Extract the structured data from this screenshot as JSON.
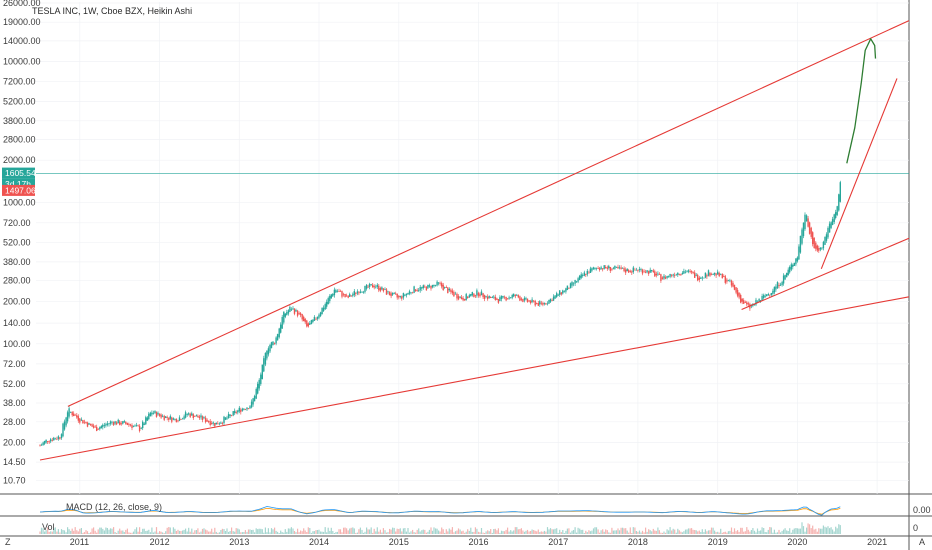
{
  "header": {
    "title": "TESLA INC, 1W, Cboe BZX, Heikin Ashi"
  },
  "price_axis": {
    "labels": [
      "26000.00",
      "19000.00",
      "14000.00",
      "10000.00",
      "7200.00",
      "5200.00",
      "3800.00",
      "2800.00",
      "2000.00",
      "1000.00",
      "720.00",
      "520.00",
      "380.00",
      "280.00",
      "200.00",
      "140.00",
      "100.00",
      "72.00",
      "52.00",
      "38.00",
      "28.00",
      "20.00",
      "14.50",
      "10.70"
    ]
  },
  "time_axis": {
    "labels": [
      "2011",
      "2012",
      "2013",
      "2014",
      "2015",
      "2016",
      "2017",
      "2018",
      "2019",
      "2020",
      "2021"
    ]
  },
  "badges": {
    "last_price": "1605.54",
    "countdown": "3d 17h",
    "prev_close": "1497.06"
  },
  "colors": {
    "up": "#26a69a",
    "down": "#ef5350",
    "trendline": "#e53935",
    "annotation": "#2e7d32",
    "macd": "#2196f3",
    "signal": "#ff9800",
    "price_line": "#26a69a"
  },
  "indicators": {
    "macd_label": "MACD (12, 26, close, 9)",
    "macd_value": "0.00",
    "vol_label": "Vol",
    "vol_value": "0"
  },
  "corner_labels": {
    "left": "Z",
    "right": "A"
  },
  "chart_data": {
    "type": "line",
    "title": "TESLA INC, 1W, Cboe BZX, Heikin Ashi",
    "scale": "log",
    "xlim": [
      2010.45,
      2021.4
    ],
    "ylim": [
      9.5,
      26000
    ],
    "series": [
      {
        "x": [
          2010.5,
          2010.6,
          2010.75,
          2010.85,
          2011.0,
          2011.2,
          2011.4,
          2011.6,
          2011.75,
          2011.9,
          2012.0,
          2012.2,
          2012.35,
          2012.5,
          2012.7,
          2012.85,
          2013.0,
          2013.15,
          2013.25,
          2013.35,
          2013.45,
          2013.55,
          2013.65,
          2013.75,
          2013.85,
          2013.95,
          2014.1,
          2014.2,
          2014.35,
          2014.5,
          2014.7,
          2014.85,
          2015.0,
          2015.2,
          2015.35,
          2015.5,
          2015.65,
          2015.8,
          2016.0,
          2016.1,
          2016.25,
          2016.45,
          2016.6,
          2016.8,
          2016.95,
          2017.15,
          2017.35,
          2017.5,
          2017.7,
          2017.85,
          2018.0,
          2018.15,
          2018.3,
          2018.45,
          2018.6,
          2018.75,
          2018.9,
          2019.0,
          2019.15,
          2019.3,
          2019.4,
          2019.5,
          2019.65,
          2019.8,
          2019.9,
          2020.0,
          2020.1,
          2020.15,
          2020.22,
          2020.3,
          2020.4,
          2020.5,
          2020.55
        ],
        "y": [
          19,
          21,
          22,
          34,
          29,
          25,
          28,
          27,
          25,
          33,
          31,
          29,
          32,
          30,
          27,
          30,
          34,
          37,
          55,
          95,
          105,
          160,
          180,
          160,
          130,
          150,
          200,
          245,
          210,
          240,
          260,
          230,
          210,
          245,
          250,
          265,
          230,
          210,
          230,
          215,
          205,
          220,
          200,
          190,
          215,
          255,
          320,
          350,
          340,
          330,
          335,
          325,
          290,
          315,
          330,
          295,
          320,
          310,
          270,
          200,
          180,
          200,
          230,
          280,
          340,
          420,
          880,
          600,
          450,
          470,
          700,
          900,
          1500
        ]
      }
    ]
  }
}
